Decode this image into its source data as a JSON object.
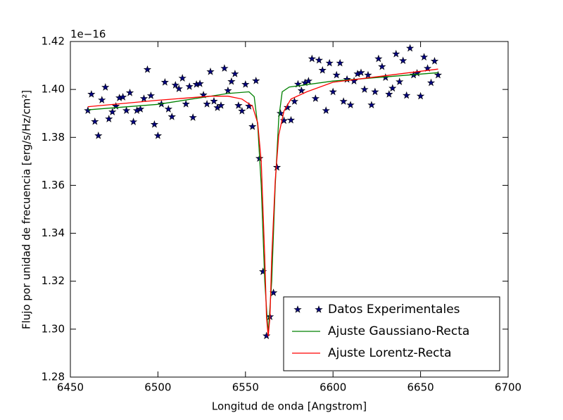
{
  "chart_data": {
    "type": "line",
    "xlabel": "Longitud de onda [Angstrom]",
    "ylabel": "Flujo por unidad de frecuencia [erg/s/Hz/cm²]",
    "y_offset": "1e−16",
    "xlim": [
      6450,
      6700
    ],
    "ylim": [
      1.28,
      1.42
    ],
    "xticks": [
      6450,
      6500,
      6550,
      6600,
      6650,
      6700
    ],
    "yticks": [
      1.28,
      {
        "value": 1.3,
        "label": "1.30"
      },
      1.32,
      1.34,
      1.36,
      1.38,
      {
        "value": 1.4,
        "label": "1.40"
      },
      1.42
    ],
    "legend": "lower right",
    "series": [
      {
        "name": "Datos Experimentales",
        "type": "scatter",
        "color": "#000080",
        "x": [
          6460,
          6462,
          6464,
          6466,
          6468,
          6470,
          6472,
          6474,
          6476,
          6478,
          6480,
          6482,
          6484,
          6486,
          6488,
          6490,
          6492,
          6494,
          6496,
          6498,
          6500,
          6502,
          6504,
          6506,
          6508,
          6510,
          6512,
          6514,
          6516,
          6518,
          6520,
          6522,
          6524,
          6526,
          6528,
          6530,
          6532,
          6534,
          6536,
          6538,
          6540,
          6542,
          6544,
          6546,
          6548,
          6550,
          6552,
          6554,
          6556,
          6558,
          6560,
          6562,
          6564,
          6566,
          6568,
          6570,
          6572,
          6574,
          6576,
          6578,
          6580,
          6582,
          6584,
          6586,
          6588,
          6590,
          6592,
          6594,
          6596,
          6598,
          6600,
          6602,
          6604,
          6606,
          6608,
          6610,
          6612,
          6614,
          6616,
          6618,
          6620,
          6622,
          6624,
          6626,
          6628,
          6630,
          6632,
          6634,
          6636,
          6638,
          6640,
          6642,
          6644,
          6646,
          6648,
          6650,
          6652,
          6654,
          6656,
          6658,
          6660
        ],
        "values": [
          1.3912,
          1.398,
          1.3866,
          1.3807,
          1.3956,
          1.4009,
          1.3877,
          1.3906,
          1.393,
          1.3965,
          1.3968,
          1.3912,
          1.3986,
          1.3865,
          1.3912,
          1.3918,
          1.3962,
          1.4083,
          1.3974,
          1.3854,
          1.3807,
          1.3939,
          1.403,
          1.3918,
          1.3886,
          1.4018,
          1.4003,
          1.4047,
          1.3939,
          1.4012,
          1.3883,
          1.4021,
          1.4024,
          1.3977,
          1.3939,
          1.4074,
          1.3951,
          1.3924,
          1.3933,
          1.4088,
          1.3995,
          1.4033,
          1.4065,
          1.3933,
          1.391,
          1.4021,
          1.393,
          1.3845,
          1.4036,
          1.3712,
          1.324,
          1.2972,
          1.3052,
          1.3152,
          1.3675,
          1.39,
          1.387,
          1.3925,
          1.3872,
          1.395,
          1.4022,
          1.3995,
          1.4028,
          1.4035,
          1.4128,
          1.3962,
          1.4122,
          1.408,
          1.3912,
          1.411,
          1.399,
          1.406,
          1.411,
          1.395,
          1.4042,
          1.3935,
          1.4035,
          1.4065,
          1.407,
          1.4,
          1.406,
          1.3935,
          1.399,
          1.4128,
          1.4095,
          1.405,
          1.398,
          1.4005,
          1.4148,
          1.4032,
          1.412,
          1.3975,
          1.4172,
          1.406,
          1.4068,
          1.3972,
          1.4135,
          1.4088,
          1.4028,
          1.4118,
          1.406
        ]
      },
      {
        "name": "Ajuste Gaussiano-Recta",
        "type": "line",
        "color": "#008000",
        "x": [
          6460,
          6500,
          6540,
          6552,
          6555,
          6557,
          6559,
          6561,
          6563,
          6565,
          6567,
          6569,
          6571,
          6575,
          6600,
          6660
        ],
        "values": [
          1.3915,
          1.3938,
          1.3983,
          1.399,
          1.397,
          1.385,
          1.36,
          1.32,
          1.298,
          1.32,
          1.36,
          1.388,
          1.399,
          1.401,
          1.4035,
          1.407
        ]
      },
      {
        "name": "Ajuste Lorentz-Recta",
        "type": "line",
        "color": "#ff0000",
        "x": [
          6460,
          6500,
          6530,
          6540,
          6548,
          6554,
          6557,
          6559,
          6561,
          6562,
          6563,
          6564,
          6565,
          6567,
          6569,
          6572,
          6576,
          6585,
          6600,
          6660
        ],
        "values": [
          1.3928,
          1.3955,
          1.3972,
          1.3972,
          1.396,
          1.393,
          1.386,
          1.37,
          1.33,
          1.305,
          1.297,
          1.305,
          1.33,
          1.362,
          1.381,
          1.391,
          1.396,
          1.399,
          1.403,
          1.4085
        ]
      }
    ]
  }
}
